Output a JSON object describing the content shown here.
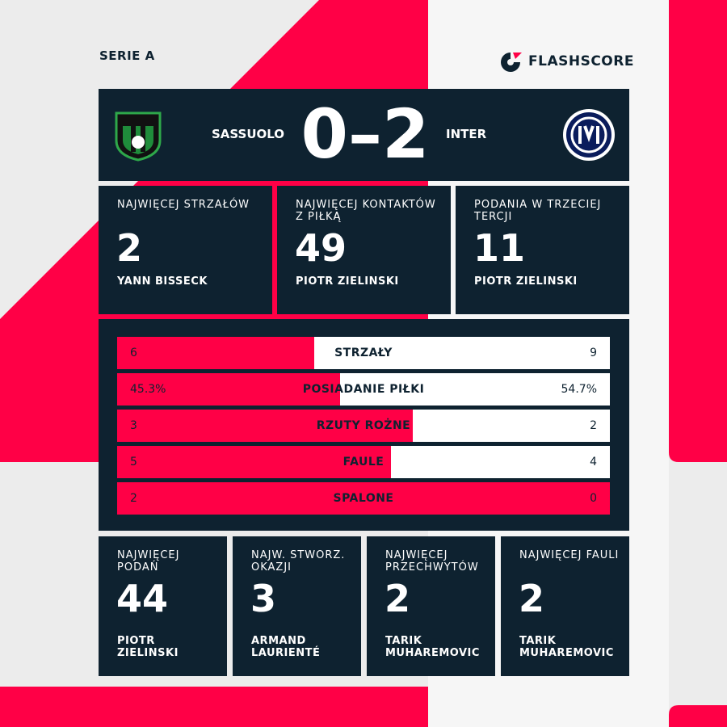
{
  "header": {
    "competition": "SERIE A",
    "brand": "FLASHSCORE"
  },
  "match": {
    "home": "SASSUOLO",
    "score": "0–2",
    "away": "INTER"
  },
  "top_cards": [
    {
      "title": "NAJWIĘCEJ STRZAŁÓW",
      "value": 2,
      "player": "YANN BISSECK"
    },
    {
      "title": "NAJWIĘCEJ KONTAKTÓW Z PIŁKĄ",
      "value": 49,
      "player": "PIOTR ZIELINSKI"
    },
    {
      "title": "PODANIA W TRZECIEJ TERCJI",
      "value": 11,
      "player": "PIOTR ZIELINSKI"
    }
  ],
  "stats": {
    "rows": [
      {
        "name": "STRZAŁY",
        "values": [
          6,
          9
        ]
      },
      {
        "name": "POSIADANIE PIŁKI",
        "values": [
          45.3,
          54.7
        ],
        "value_labels": [
          "45.3%",
          "54.7%"
        ]
      },
      {
        "name": "RZUTY ROŻNE",
        "values": [
          3,
          2
        ]
      },
      {
        "name": "FAULE",
        "values": [
          5,
          4
        ]
      },
      {
        "name": "SPALONE",
        "values": [
          2,
          0
        ]
      }
    ]
  },
  "bottom_cards": [
    {
      "title": "NAJWIĘCEJ PODAŃ",
      "value": 44,
      "player": "PIOTR ZIELINSKI"
    },
    {
      "title": "NAJW. STWORZ. OKAZJI",
      "value": 3,
      "player": "ARMAND LAURIENTÉ"
    },
    {
      "title": "NAJWIĘCEJ PRZECHWYTÓW",
      "value": 2,
      "player": "TARIK MUHAREMOVIC"
    },
    {
      "title": "NAJWIĘCEJ FAULI",
      "value": 2,
      "player": "TARIK MUHAREMOVIC"
    }
  ]
}
